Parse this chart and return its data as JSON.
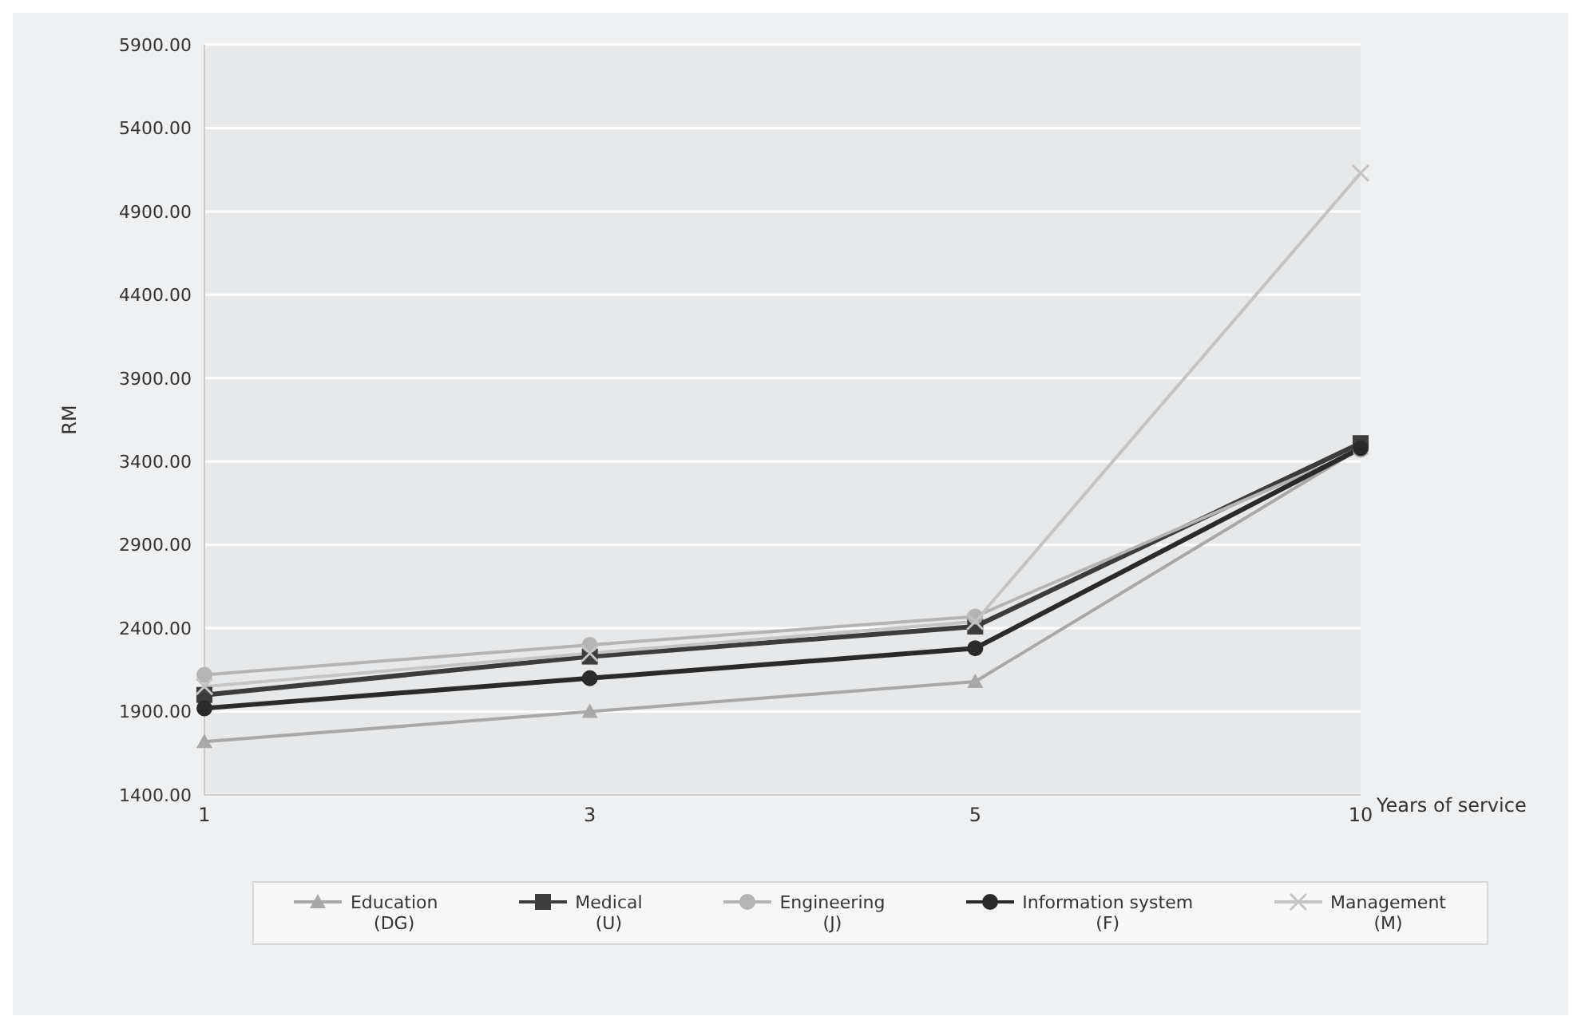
{
  "chart_data": {
    "type": "line",
    "xlabel": "Years of service",
    "ylabel": "RM",
    "categories": [
      "1",
      "3",
      "5",
      "10"
    ],
    "series": [
      {
        "name": "Education\n(DG)",
        "color": "#a8a8a8",
        "marker": "triangle",
        "values": [
          1720,
          1900,
          2080,
          3480
        ]
      },
      {
        "name": "Medical\n(U)",
        "color": "#3c3c3c",
        "marker": "square",
        "values": [
          2000,
          2230,
          2410,
          3510
        ]
      },
      {
        "name": "Engineering\n(J)",
        "color": "#b4b4b4",
        "marker": "circle",
        "values": [
          2120,
          2300,
          2470,
          3470
        ]
      },
      {
        "name": "Information system\n(F)",
        "color": "#2a2a2a",
        "marker": "circle",
        "values": [
          1920,
          2100,
          2280,
          3480
        ]
      },
      {
        "name": "Management\n(M)",
        "color": "#c4c4c4",
        "marker": "cross",
        "values": [
          2050,
          2250,
          2440,
          5130
        ]
      }
    ],
    "ylim": [
      1400,
      5900
    ],
    "yticks": [
      {
        "value": 1400,
        "label": "1400.00"
      },
      {
        "value": 1900,
        "label": "1900.00"
      },
      {
        "value": 2400,
        "label": "2400.00"
      },
      {
        "value": 2900,
        "label": "2900.00"
      },
      {
        "value": 3400,
        "label": "3400.00"
      },
      {
        "value": 3900,
        "label": "3900.00"
      },
      {
        "value": 4400,
        "label": "4400.00"
      },
      {
        "value": 4900,
        "label": "4900.00"
      },
      {
        "value": 5400,
        "label": "5400.00"
      },
      {
        "value": 5900,
        "label": "5900.00"
      }
    ],
    "grid": "y",
    "legend": "bottom"
  }
}
